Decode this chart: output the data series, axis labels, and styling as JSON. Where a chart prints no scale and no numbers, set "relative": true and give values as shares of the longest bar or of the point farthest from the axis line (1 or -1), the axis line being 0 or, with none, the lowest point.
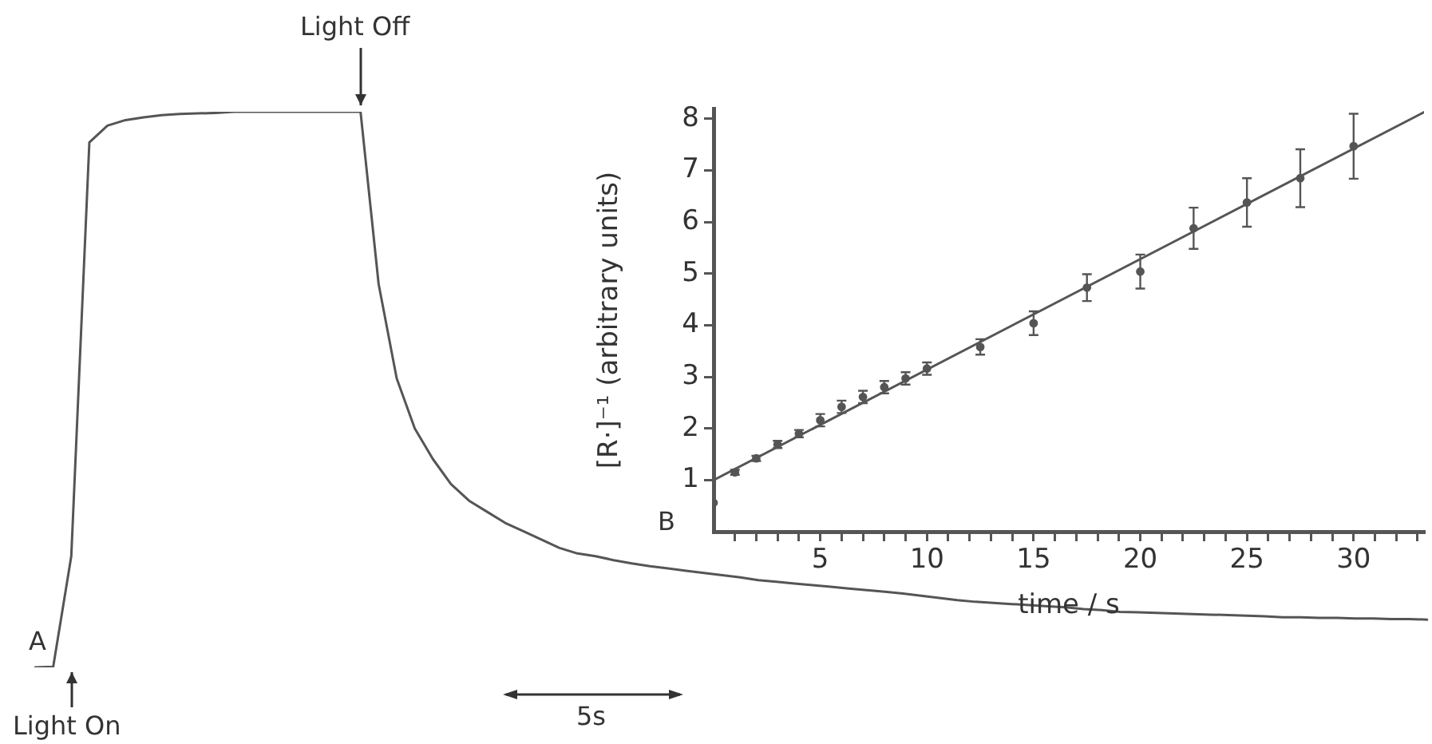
{
  "chart_data": [
    {
      "type": "line",
      "relative": true,
      "color": "#555555",
      "categories": [
        null,
        null,
        null,
        null,
        null,
        null,
        null,
        null,
        null,
        null,
        null,
        null,
        null,
        null,
        null,
        null,
        null,
        null,
        null,
        null,
        null,
        null,
        null,
        null,
        null,
        null,
        null,
        null,
        null,
        null,
        null,
        null,
        null,
        null,
        null,
        null,
        null,
        null,
        null,
        null,
        null,
        null,
        null,
        null,
        null,
        null,
        null,
        null,
        null,
        null,
        null,
        null,
        null,
        null,
        null,
        null,
        null,
        null,
        null,
        null,
        null,
        null,
        null,
        null,
        null,
        null,
        null,
        null,
        null,
        null,
        null,
        null,
        null,
        null,
        null,
        null,
        null,
        null
      ],
      "values": [
        0,
        0.001,
        0.2,
        0.945,
        0.975,
        0.985,
        0.99,
        0.994,
        0.996,
        0.997,
        0.998,
        1,
        1,
        1,
        1,
        1,
        1,
        1,
        1,
        0.69,
        0.52,
        0.43,
        0.375,
        0.33,
        0.3,
        0.28,
        0.26,
        0.245,
        0.23,
        0.215,
        0.205,
        0.2,
        0.193,
        0.187,
        0.182,
        0.178,
        0.174,
        0.17,
        0.166,
        0.162,
        0.157,
        0.154,
        0.151,
        0.148,
        0.145,
        0.142,
        0.139,
        0.136,
        0.133,
        0.129,
        0.125,
        0.121,
        0.118,
        0.116,
        0.114,
        0.112,
        0.11,
        0.108,
        0.105,
        0.103,
        0.1,
        0.099,
        0.098,
        0.097,
        0.096,
        0.095,
        0.094,
        0.093,
        0.092,
        0.09,
        0.09,
        0.089,
        0.089,
        0.088,
        0.088,
        0.087,
        0.087,
        0.086
      ],
      "annotations": [
        "A",
        "5s",
        "Light On",
        "Light Off"
      ]
    },
    {
      "type": "scatter",
      "marker": "circle",
      "xlabel": "time / s",
      "ylabel": "[R·]⁻¹ (arbitrary units)",
      "xlim": [
        0,
        33.3
      ],
      "ylim": [
        0,
        8.2
      ],
      "xticks": [
        {
          "value": 1,
          "label": null
        },
        {
          "value": 2,
          "label": null
        },
        {
          "value": 3,
          "label": null
        },
        {
          "value": 4,
          "label": null
        },
        5,
        {
          "value": 6,
          "label": null
        },
        {
          "value": 7,
          "label": null
        },
        {
          "value": 8,
          "label": null
        },
        {
          "value": 9,
          "label": null
        },
        10,
        {
          "value": 11,
          "label": null
        },
        {
          "value": 12,
          "label": null
        },
        {
          "value": 13,
          "label": null
        },
        {
          "value": 14,
          "label": null
        },
        15,
        {
          "value": 16,
          "label": null
        },
        {
          "value": 17,
          "label": null
        },
        {
          "value": 18,
          "label": null
        },
        {
          "value": 19,
          "label": null
        },
        20,
        {
          "value": 21,
          "label": null
        },
        {
          "value": 22,
          "label": null
        },
        {
          "value": 23,
          "label": null
        },
        {
          "value": 24,
          "label": null
        },
        25,
        {
          "value": 26,
          "label": null
        },
        {
          "value": 27,
          "label": null
        },
        {
          "value": 28,
          "label": null
        },
        {
          "value": 29,
          "label": null
        },
        30,
        {
          "value": 31,
          "label": null
        },
        {
          "value": 32,
          "label": null
        },
        {
          "value": 33,
          "label": null
        }
      ],
      "yticks": [
        1,
        2,
        3,
        4,
        5,
        6,
        7,
        8
      ],
      "series": [
        {
          "color": "#555555",
          "x": [
            0,
            1,
            2,
            3,
            4,
            5,
            6,
            7,
            8,
            9,
            10,
            12.5,
            15,
            17.5,
            20,
            22.5,
            25,
            27.5,
            30
          ],
          "values": [
            0.56,
            1.15,
            1.42,
            1.69,
            1.9,
            2.16,
            2.42,
            2.61,
            2.8,
            2.97,
            3.16,
            3.58,
            4.04,
            4.73,
            5.04,
            5.88,
            6.38,
            6.85,
            7.47
          ],
          "errors": [
            null,
            0.05,
            0.05,
            0.07,
            0.07,
            0.12,
            0.12,
            0.12,
            0.12,
            0.12,
            0.12,
            0.15,
            0.23,
            0.26,
            0.33,
            0.4,
            0.47,
            0.56,
            0.63
          ]
        },
        {
          "type": "line",
          "marker": "none",
          "color": "#555555",
          "x": [
            0,
            33.3
          ],
          "values": [
            1.0,
            8.13
          ]
        }
      ],
      "annotations": [
        "B"
      ]
    }
  ]
}
